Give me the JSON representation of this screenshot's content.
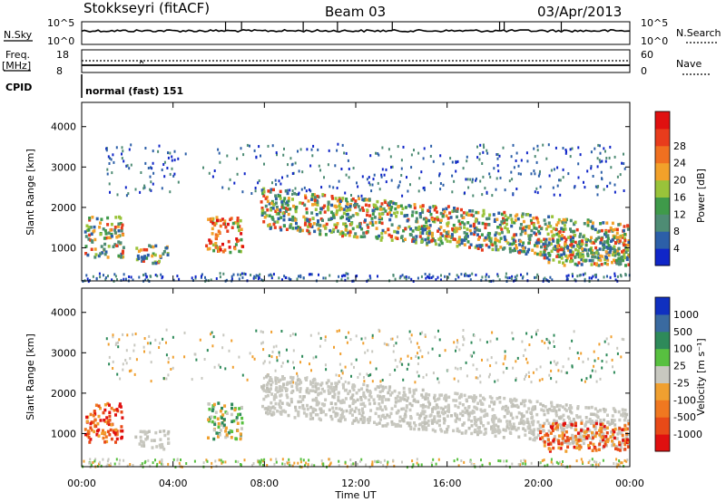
{
  "header": {
    "station": "Stokkseyri (fitACF)",
    "beam": "Beam 03",
    "date": "03/Apr/2013"
  },
  "panels": {
    "nsky": {
      "label": "N.Sky",
      "ticks": [
        "10^5",
        "10^0"
      ]
    },
    "nsearch": {
      "label": "N.Search",
      "ticks": [
        "10^5",
        "10^0"
      ]
    },
    "freq": {
      "label_top": "Freq.",
      "label_unit": "[MHz]",
      "ticks": [
        "18",
        "8"
      ]
    },
    "nave": {
      "label": "Nave",
      "ticks": [
        "60",
        "0"
      ]
    },
    "cpid": {
      "label": "CPID",
      "mode": "normal (fast) 151"
    }
  },
  "chart_data": [
    {
      "type": "heatmap",
      "name": "power",
      "ylabel": "Slant Range [km]",
      "xlabel": "Time UT",
      "yticks": [
        1000,
        2000,
        3000,
        4000
      ],
      "ylim": [
        180,
        4600
      ],
      "xlim": [
        0,
        24
      ],
      "xticks": [
        "00:00",
        "04:00",
        "08:00",
        "12:00",
        "16:00",
        "20:00",
        "00:00"
      ],
      "colorbar": {
        "label": "Power [dB]",
        "ticks": [
          "4",
          "8",
          "12",
          "16",
          "20",
          "24",
          "28"
        ],
        "colors": [
          "#1026c8",
          "#2c5fa8",
          "#4e8c74",
          "#3f9a4a",
          "#99c33a",
          "#f2a12a",
          "#f07020",
          "#e83c1c",
          "#e01010"
        ]
      },
      "regions": [
        {
          "t0": 0.1,
          "t1": 1.8,
          "r0": 800,
          "r1": 1800,
          "level": "mid"
        },
        {
          "t0": 2.3,
          "t1": 3.8,
          "r0": 650,
          "r1": 1100,
          "level": "mid"
        },
        {
          "t0": 5.4,
          "t1": 7.0,
          "r0": 900,
          "r1": 1800,
          "level": "high"
        },
        {
          "t0": 7.8,
          "t1": 23.9,
          "r0": 1050,
          "r1": 2250,
          "level": "mid"
        },
        {
          "t0": 20.0,
          "t1": 23.9,
          "r0": 600,
          "r1": 1300,
          "level": "mid"
        }
      ]
    },
    {
      "type": "heatmap",
      "name": "velocity",
      "ylabel": "Slant Range [km]",
      "xlabel": "Time UT",
      "yticks": [
        1000,
        2000,
        3000,
        4000
      ],
      "ylim": [
        180,
        4600
      ],
      "xlim": [
        0,
        24
      ],
      "xticks": [
        "00:00",
        "04:00",
        "08:00",
        "12:00",
        "16:00",
        "20:00",
        "00:00"
      ],
      "colorbar": {
        "label": "Velocity [m s⁻¹]",
        "ticks": [
          "1000",
          "500",
          "100",
          "25",
          "-25",
          "-100",
          "-500",
          "-1000"
        ],
        "colors": [
          "#1030c0",
          "#3a6aa0",
          "#2e8a5a",
          "#58c040",
          "#c8c8c0",
          "#f0a030",
          "#f07820",
          "#e84a18",
          "#e01010"
        ]
      },
      "regions": [
        {
          "t0": 0.1,
          "t1": 1.8,
          "r0": 800,
          "r1": 1800,
          "level": "negative"
        },
        {
          "t0": 2.3,
          "t1": 3.8,
          "r0": 650,
          "r1": 1100,
          "level": "ground"
        },
        {
          "t0": 5.4,
          "t1": 7.0,
          "r0": 900,
          "r1": 1800,
          "level": "positive"
        },
        {
          "t0": 7.8,
          "t1": 23.9,
          "r0": 1050,
          "r1": 2250,
          "level": "ground"
        },
        {
          "t0": 20.0,
          "t1": 23.9,
          "r0": 600,
          "r1": 1300,
          "level": "negative"
        }
      ]
    }
  ]
}
